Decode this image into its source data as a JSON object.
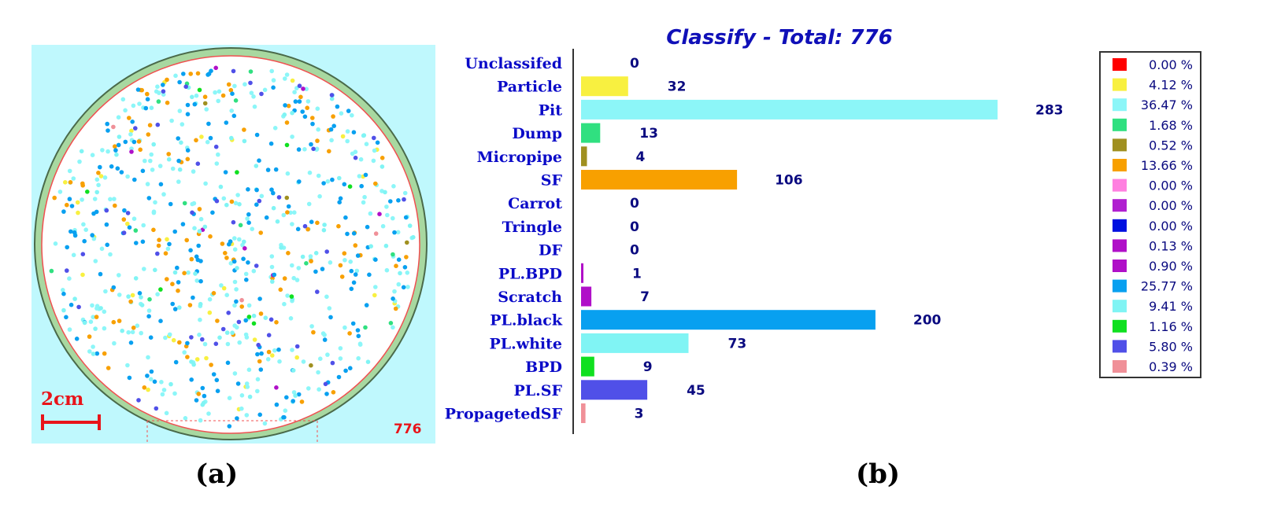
{
  "wafer": {
    "scale_label": "2cm",
    "count_label": "776",
    "colors": {
      "background": "#bff8fd",
      "rim": "#a8d8a0",
      "rim_edge": "#4a6a4a",
      "inner_edge": "#f05050",
      "scale": "#e8141a",
      "count": "#e8141a"
    }
  },
  "captions": {
    "a": "(a)",
    "b": "(b)"
  },
  "chart_data": {
    "type": "bar",
    "orientation": "horizontal",
    "title": "Classify - Total: 776",
    "categories": [
      "Unclassifed",
      "Particle",
      "Pit",
      "Dump",
      "Micropipe",
      "SF",
      "Carrot",
      "Tringle",
      "DF",
      "PL.BPD",
      "Scratch",
      "PL.black",
      "PL.white",
      "BPD",
      "PL.SF",
      "PropagetedSF"
    ],
    "values": [
      0,
      32,
      283,
      13,
      4,
      106,
      0,
      0,
      0,
      1,
      7,
      200,
      73,
      9,
      45,
      3
    ],
    "bar_colors": [
      "#ff0000",
      "#f8f040",
      "#8cf6f8",
      "#30e080",
      "#a09020",
      "#f8a000",
      "#ff80e0",
      "#b020d0",
      "#0010e0",
      "#b010c8",
      "#b010c8",
      "#08a0f0",
      "#80f4f4",
      "#10e020",
      "#5050e8",
      "#f09098"
    ],
    "legend": {
      "position": "right",
      "entries": [
        "0.00 %",
        "4.12 %",
        "36.47 %",
        "1.68 %",
        "0.52 %",
        "13.66 %",
        "0.00 %",
        "0.00 %",
        "0.00 %",
        "0.13 %",
        "0.90 %",
        "25.77 %",
        "9.41 %",
        "1.16 %",
        "5.80 %",
        "0.39 %"
      ],
      "colors": [
        "#ff0000",
        "#f8f040",
        "#8cf6f8",
        "#30e080",
        "#a09020",
        "#f8a000",
        "#ff80e0",
        "#b020d0",
        "#0010e0",
        "#b010c8",
        "#b010c8",
        "#08a0f0",
        "#80f4f4",
        "#10e020",
        "#5050e8",
        "#f09098"
      ]
    },
    "colors": {
      "title": "#1010b8",
      "category_labels": "#0a0ac8",
      "value_labels": "#0a0a80",
      "legend_text": "#0a0a80"
    }
  }
}
